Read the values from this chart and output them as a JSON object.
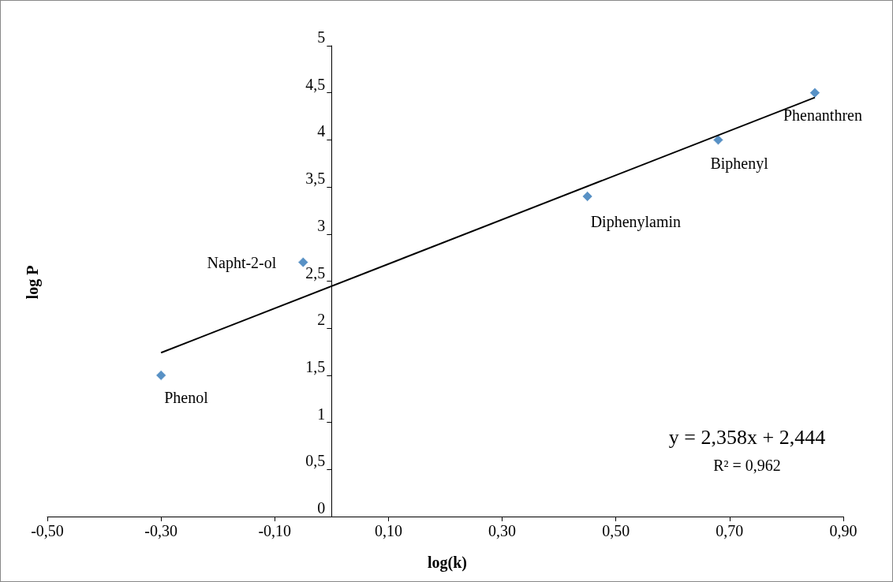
{
  "chart_data": {
    "type": "scatter",
    "xlabel": "log(k)",
    "ylabel": "log P",
    "series": [
      {
        "type": "scatter",
        "color": "#2e75b6",
        "x": [
          -0.3,
          -0.05,
          0.45,
          0.68,
          0.85
        ],
        "values": [
          1.5,
          2.7,
          3.4,
          4.0,
          4.5
        ],
        "marker": "diamond"
      },
      {
        "type": "line",
        "color": "#000000",
        "x": [
          -0.3,
          0.85
        ],
        "values": [
          1.74,
          4.45
        ],
        "marker": "none",
        "line_style": "solid"
      }
    ],
    "xlim": [
      -0.5,
      0.9
    ],
    "xticks": [
      {
        "value": -0.5,
        "label": "-0,50"
      },
      {
        "value": -0.3,
        "label": "-0,30"
      },
      {
        "value": -0.1,
        "label": "-0,10"
      },
      {
        "value": 0.1,
        "label": "0,10"
      },
      {
        "value": 0.3,
        "label": "0,30"
      },
      {
        "value": 0.5,
        "label": "0,50"
      },
      {
        "value": 0.7,
        "label": "0,70"
      },
      {
        "value": 0.9,
        "label": "0,90"
      }
    ],
    "ylim": [
      0,
      5
    ],
    "yticks": [
      0,
      {
        "value": 0.5,
        "label": "0,5"
      },
      1,
      {
        "value": 1.5,
        "label": "1,5"
      },
      2,
      {
        "value": 2.5,
        "label": "2,5"
      },
      3,
      {
        "value": 3.5,
        "label": "3,5"
      },
      4,
      {
        "value": 4.5,
        "label": "4,5"
      },
      5
    ],
    "grid": false,
    "annotations": [
      {
        "text": "Phenol",
        "x": -0.3,
        "y": 1.5
      },
      {
        "text": "Napht-2-ol",
        "x": -0.05,
        "y": 2.7
      },
      {
        "text": "Diphenylamin",
        "x": 0.45,
        "y": 3.4
      },
      {
        "text": "Biphenyl",
        "x": 0.68,
        "y": 4.0
      },
      {
        "text": "Phenanthren",
        "x": 0.85,
        "y": 4.5
      },
      "y = 2,358x + 2,444",
      "R² = 0,962"
    ]
  }
}
